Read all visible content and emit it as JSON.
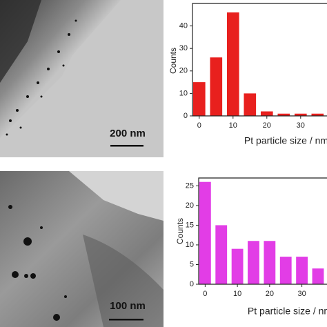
{
  "images": [
    {
      "scale_bar": "200 nm"
    },
    {
      "scale_bar": "100 nm"
    }
  ],
  "chart_data": [
    {
      "type": "bar",
      "x": [
        0,
        5,
        10,
        15,
        20,
        25,
        30,
        35
      ],
      "values": [
        15,
        26,
        46,
        10,
        2,
        1,
        1,
        1
      ],
      "color": "#e8201e",
      "xlabel": "Pt particle size / nm",
      "ylabel": "Counts",
      "xlim": [
        -2,
        38
      ],
      "xticks": [
        0,
        10,
        20,
        30
      ],
      "ylim": [
        0,
        50
      ],
      "yticks": [
        0,
        10,
        20,
        30,
        40
      ]
    },
    {
      "type": "bar",
      "x": [
        0,
        5,
        10,
        15,
        20,
        25,
        30,
        35
      ],
      "values": [
        26,
        15,
        9,
        11,
        11,
        7,
        7,
        4
      ],
      "color": "#e23de6",
      "xlabel": "Pt particle size / nm",
      "ylabel": "Counts",
      "xlim": [
        -2,
        38
      ],
      "xticks": [
        0,
        10,
        20,
        30
      ],
      "ylim": [
        0,
        27
      ],
      "yticks": [
        0,
        5,
        10,
        15,
        20,
        25
      ]
    }
  ]
}
